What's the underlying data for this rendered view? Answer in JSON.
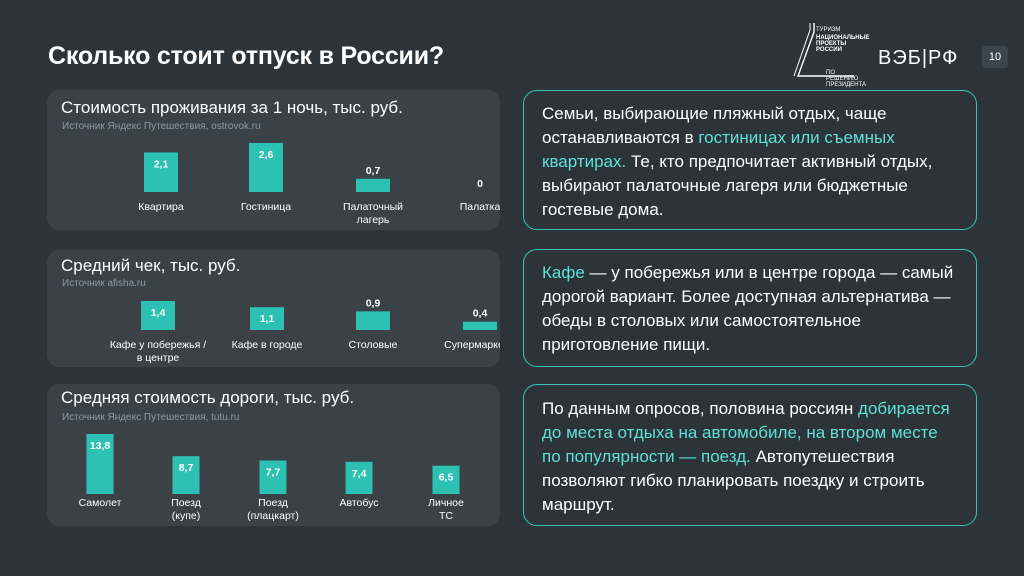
{
  "page": {
    "title": "Сколько стоит отпуск в России?",
    "page_number": "10"
  },
  "header": {
    "logo_top": "Туризм",
    "logo_main": "Национальные проекты России",
    "logo_sub": "По решению Президента",
    "veb_logo": "ВЭБ|РФ"
  },
  "colors": {
    "bar": "#2cc1b3",
    "accent": "#5ee0d6",
    "panel": "#3a4248",
    "background": "#2c3339"
  },
  "chart_data": [
    {
      "type": "bar",
      "title": "Стоимость проживания за 1 ночь, тыс. руб.",
      "source": "Источник Яндекс Путешествия, ostrovok.ru",
      "categories": [
        "Квартира",
        "Гостиница",
        "Палаточный лагерь",
        "Палатка"
      ],
      "values": [
        2.1,
        2.6,
        0.7,
        0
      ],
      "value_labels": [
        "2,1",
        "2,6",
        "0,7",
        "0"
      ],
      "ylim": [
        0,
        2.6
      ]
    },
    {
      "type": "bar",
      "title": "Средний чек, тыс. руб.",
      "source": "Источник afisha.ru",
      "categories": [
        "Кафе у побережья / в центре",
        "Кафе в городе",
        "Столовые",
        "Супермаркеты"
      ],
      "values": [
        1.4,
        1.1,
        0.9,
        0.4
      ],
      "value_labels": [
        "1,4",
        "1,1",
        "0,9",
        "0,4"
      ],
      "ylim": [
        0,
        1.4
      ]
    },
    {
      "type": "bar",
      "title": "Средняя стоимость дороги, тыс. руб.",
      "source": "Источник Яндекс Путешествия, tutu.ru",
      "categories": [
        "Самолет",
        "Поезд (купе)",
        "Поезд (плацкарт)",
        "Автобус",
        "Личное ТС"
      ],
      "values": [
        13.8,
        8.7,
        7.7,
        7.4,
        6.5
      ],
      "value_labels": [
        "13,8",
        "8,7",
        "7,7",
        "7,4",
        "6,5"
      ],
      "ylim": [
        0,
        13.8
      ]
    }
  ],
  "cards": [
    {
      "parts": [
        {
          "text": "Семьи, выбирающие пляжный отдых, чаще останавливаются в ",
          "hl": false
        },
        {
          "text": "гостиницах или съемных квартирах.",
          "hl": true
        },
        {
          "text": " Те, кто предпочитает активный отдых, выбирают палаточные лагеря или бюджетные гостевые дома.",
          "hl": false
        }
      ]
    },
    {
      "parts": [
        {
          "text": "Кафе",
          "hl": true
        },
        {
          "text": " — у побережья или в центре города — самый дорогой вариант. Более доступная альтернатива — обеды в столовых или самостоятельное приготовление пищи.",
          "hl": false
        }
      ]
    },
    {
      "parts": [
        {
          "text": "По данным опросов, половина россиян ",
          "hl": false
        },
        {
          "text": "добирается до места отдыха на автомобиле, на втором месте по популярности — поезд.",
          "hl": true
        },
        {
          "text": " Автопутешествия позволяют гибко планировать поездку и строить маршрут.",
          "hl": false
        }
      ]
    }
  ]
}
